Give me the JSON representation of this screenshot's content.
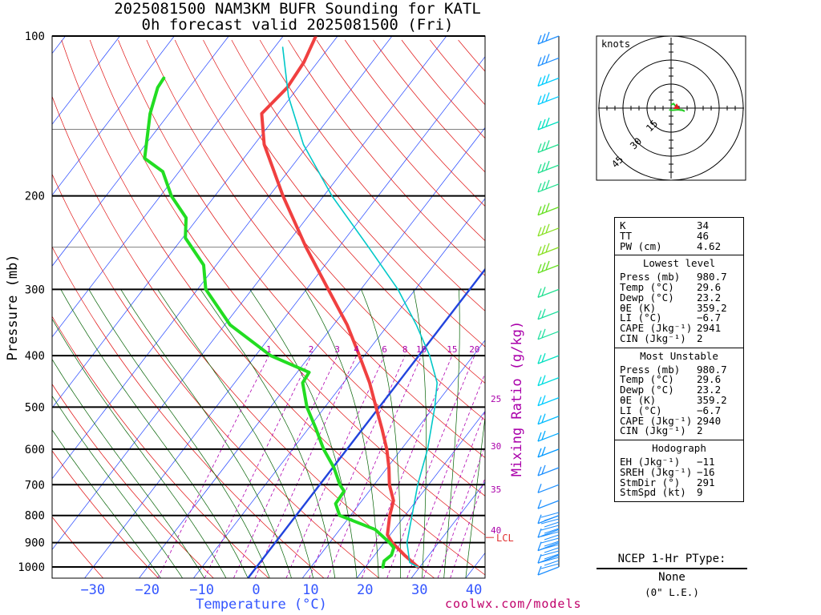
{
  "title": {
    "line1": "2025081500 NAM3KM BUFR Sounding for KATL",
    "line2": "0h forecast valid 2025081500 (Fri)"
  },
  "axes": {
    "ylabel": "Pressure (mb)",
    "xlabel": "Temperature (°C)",
    "pressure_ticks": [
      "100",
      "200",
      "300",
      "400",
      "500",
      "600",
      "700",
      "800",
      "900",
      "1000"
    ],
    "temperature_ticks": [
      "−30",
      "−20",
      "−10",
      "0",
      "10",
      "20",
      "30",
      "40"
    ],
    "mixing_ratio_label": "Mixing Ratio (g/kg)",
    "mixing_ratio_top": [
      "1",
      "2",
      "3",
      "4",
      "6",
      "8",
      "10",
      "15",
      "20"
    ],
    "mixing_ratio_side": [
      "25",
      "30",
      "35",
      "40"
    ],
    "lcl_label": "LCL"
  },
  "chart_data": {
    "type": "line",
    "title": "2025081500 NAM3KM BUFR Sounding for KATL",
    "subtitle": "0h forecast valid 2025081500 (Fri)",
    "xlabel": "Temperature (°C)",
    "ylabel": "Pressure (mb)",
    "xlim": [
      -38,
      42
    ],
    "ylim": [
      1025,
      100
    ],
    "yscale": "log",
    "series": [
      {
        "name": "Temperature",
        "color": "#f04040",
        "points": [
          [
            1000,
            29.6
          ],
          [
            950,
            25.5
          ],
          [
            900,
            21.5
          ],
          [
            870,
            19.5
          ],
          [
            800,
            17.2
          ],
          [
            750,
            15.8
          ],
          [
            700,
            12.8
          ],
          [
            650,
            10.3
          ],
          [
            600,
            7.3
          ],
          [
            550,
            3.6
          ],
          [
            500,
            -0.6
          ],
          [
            450,
            -5.2
          ],
          [
            400,
            -10.9
          ],
          [
            350,
            -17.5
          ],
          [
            300,
            -26.0
          ],
          [
            250,
            -36.0
          ],
          [
            200,
            -47.5
          ],
          [
            160,
            -58.2
          ],
          [
            140,
            -63.0
          ],
          [
            125,
            -62.0
          ],
          [
            112,
            -62.5
          ],
          [
            100,
            -64.0
          ]
        ]
      },
      {
        "name": "Dewpoint",
        "color": "#22dd22",
        "points": [
          [
            1000,
            23.2
          ],
          [
            975,
            22.6
          ],
          [
            950,
            23.1
          ],
          [
            920,
            22.5
          ],
          [
            900,
            21.0
          ],
          [
            850,
            16.5
          ],
          [
            800,
            8.0
          ],
          [
            760,
            5.6
          ],
          [
            720,
            5.4
          ],
          [
            700,
            3.7
          ],
          [
            650,
            0.2
          ],
          [
            600,
            -4.3
          ],
          [
            550,
            -8.5
          ],
          [
            500,
            -13.3
          ],
          [
            450,
            -17.5
          ],
          [
            430,
            -17.8
          ],
          [
            400,
            -27.2
          ],
          [
            350,
            -39.0
          ],
          [
            300,
            -48.5
          ],
          [
            270,
            -52.3
          ],
          [
            240,
            -59.5
          ],
          [
            220,
            -62.2
          ],
          [
            200,
            -68.0
          ],
          [
            180,
            -73.0
          ],
          [
            170,
            -78.2
          ],
          [
            140,
            -83.5
          ],
          [
            125,
            -85.8
          ],
          [
            120,
            -86.0
          ]
        ]
      },
      {
        "name": "Virtual parcel",
        "color": "#00c8c8",
        "points": [
          [
            1000,
            29.6
          ],
          [
            980.7,
            27.5
          ],
          [
            900,
            24.2
          ],
          [
            800,
            21.3
          ],
          [
            700,
            18.0
          ],
          [
            600,
            14.8
          ],
          [
            500,
            10.2
          ],
          [
            450,
            7.2
          ],
          [
            400,
            2.0
          ],
          [
            350,
            -4.8
          ],
          [
            300,
            -13.2
          ],
          [
            250,
            -24.5
          ],
          [
            200,
            -38.5
          ],
          [
            160,
            -51.0
          ],
          [
            130,
            -60.5
          ],
          [
            105,
            -68.5
          ]
        ]
      }
    ],
    "lcl_pressure": 880,
    "grid": true
  },
  "wind_barbs": [
    {
      "p": 100,
      "color": "#1e90ff"
    },
    {
      "p": 110,
      "color": "#1e90ff"
    },
    {
      "p": 120,
      "color": "#00ccff"
    },
    {
      "p": 130,
      "color": "#00ccff"
    },
    {
      "p": 145,
      "color": "#00e0c0"
    },
    {
      "p": 160,
      "color": "#22e090"
    },
    {
      "p": 175,
      "color": "#22e090"
    },
    {
      "p": 190,
      "color": "#22e090"
    },
    {
      "p": 210,
      "color": "#66e022"
    },
    {
      "p": 230,
      "color": "#88e022"
    },
    {
      "p": 250,
      "color": "#88e022"
    },
    {
      "p": 270,
      "color": "#66e022"
    },
    {
      "p": 300,
      "color": "#22e090"
    },
    {
      "p": 330,
      "color": "#22e0a0"
    },
    {
      "p": 360,
      "color": "#22e0a0"
    },
    {
      "p": 400,
      "color": "#00e0c0"
    },
    {
      "p": 440,
      "color": "#00dde0"
    },
    {
      "p": 480,
      "color": "#00ccff"
    },
    {
      "p": 520,
      "color": "#00bbff"
    },
    {
      "p": 560,
      "color": "#00aaff"
    },
    {
      "p": 600,
      "color": "#0099ff"
    },
    {
      "p": 650,
      "color": "#1e90ff"
    },
    {
      "p": 700,
      "color": "#1e90ff"
    },
    {
      "p": 750,
      "color": "#1e90ff"
    },
    {
      "p": 800,
      "color": "#1e90ff"
    },
    {
      "p": 850,
      "color": "#1e90ff"
    },
    {
      "p": 900,
      "color": "#1e90ff"
    },
    {
      "p": 950,
      "color": "#1e90ff"
    },
    {
      "p": 1000,
      "color": "#1e90ff"
    }
  ],
  "hodograph": {
    "units_label": "knots",
    "ring_labels": [
      "15",
      "30",
      "45"
    ],
    "trace": [
      [
        0,
        2
      ],
      [
        1.5,
        2.8
      ],
      [
        2.5,
        1.6
      ],
      [
        3.5,
        1.0
      ],
      [
        4.2,
        -0.5
      ],
      [
        5.5,
        -1.2
      ],
      [
        7.0,
        -1.3
      ],
      [
        8.5,
        -2.0
      ],
      [
        7.0,
        -1.2
      ],
      [
        4.5,
        -1.0
      ],
      [
        1.0,
        -1.3
      ],
      [
        -1.2,
        -1.1
      ]
    ],
    "storm_motion": [
      3.5,
      1.0
    ]
  },
  "stats": {
    "top": [
      {
        "label": "K",
        "value": "34"
      },
      {
        "label": "TT",
        "value": "46"
      },
      {
        "label": "PW (cm)",
        "value": "4.62"
      }
    ],
    "lowest": {
      "header": "Lowest level",
      "rows": [
        {
          "label": "Press (mb)",
          "value": "980.7"
        },
        {
          "label": "Temp (°C)",
          "value": "29.6"
        },
        {
          "label": "Dewp (°C)",
          "value": "23.2"
        },
        {
          "label": "θE (K)",
          "value": "359.2"
        },
        {
          "label": "LI (°C)",
          "value": "−6.7"
        },
        {
          "label": "CAPE (Jkg⁻¹)",
          "value": "2941"
        },
        {
          "label": "CIN (Jkg⁻¹)",
          "value": "2"
        }
      ]
    },
    "unstable": {
      "header": "Most Unstable",
      "rows": [
        {
          "label": "Press (mb)",
          "value": "980.7"
        },
        {
          "label": "Temp (°C)",
          "value": "29.6"
        },
        {
          "label": "Dewp (°C)",
          "value": "23.2"
        },
        {
          "label": "θE (K)",
          "value": "359.2"
        },
        {
          "label": "LI (°C)",
          "value": "−6.7"
        },
        {
          "label": "CAPE (Jkg⁻¹)",
          "value": "2940"
        },
        {
          "label": "CIN (Jkg⁻¹)",
          "value": "2"
        }
      ]
    },
    "hodo": {
      "header": "Hodograph",
      "rows": [
        {
          "label": "EH (Jkg⁻¹)",
          "value": "−11"
        },
        {
          "label": "SREH (Jkg⁻¹)",
          "value": "−16"
        },
        {
          "label": "StmDir (°)",
          "value": "291"
        },
        {
          "label": "StmSpd (kt)",
          "value": "9"
        }
      ]
    }
  },
  "ptype": {
    "title": "NCEP 1-Hr PType:",
    "value": "None",
    "accum": "(0\" L.E.)"
  },
  "credit": "coolwx.com/models",
  "colors": {
    "isotherm": "#2244ff",
    "dry_adiabat": "#e01010",
    "moist_adiabat": "#006000",
    "mixing_ratio": "#b000b0",
    "freezing_line": "#2244dd"
  }
}
